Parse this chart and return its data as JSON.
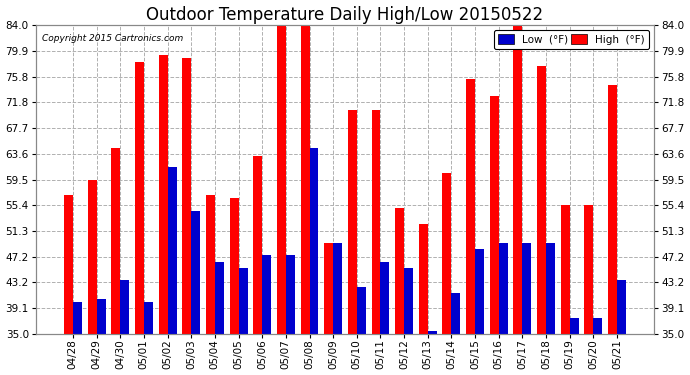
{
  "title": "Outdoor Temperature Daily High/Low 20150522",
  "copyright": "Copyright 2015 Cartronics.com",
  "dates": [
    "04/28",
    "04/29",
    "04/30",
    "05/01",
    "05/02",
    "05/03",
    "05/04",
    "05/05",
    "05/06",
    "05/07",
    "05/08",
    "05/09",
    "05/10",
    "05/11",
    "05/12",
    "05/13",
    "05/14",
    "05/15",
    "05/16",
    "05/17",
    "05/18",
    "05/19",
    "05/20",
    "05/21"
  ],
  "highs": [
    57.0,
    59.5,
    64.5,
    78.2,
    79.2,
    78.8,
    57.0,
    56.5,
    63.2,
    84.5,
    84.0,
    49.5,
    70.5,
    70.5,
    55.0,
    52.5,
    60.5,
    75.5,
    72.8,
    84.0,
    77.5,
    55.5,
    55.5,
    74.5
  ],
  "lows": [
    40.0,
    40.5,
    43.5,
    40.0,
    61.5,
    54.5,
    46.5,
    45.5,
    47.5,
    47.5,
    64.5,
    49.5,
    42.5,
    46.5,
    45.5,
    35.5,
    41.5,
    48.5,
    49.5,
    49.5,
    49.5,
    37.5,
    37.5,
    43.5
  ],
  "high_color": "#ff0000",
  "low_color": "#0000cd",
  "bg_color": "#ffffff",
  "grid_color": "#b0b0b0",
  "ylim_min": 35.0,
  "ylim_max": 84.0,
  "yticks": [
    35.0,
    39.1,
    43.2,
    47.2,
    51.3,
    55.4,
    59.5,
    63.6,
    67.7,
    71.8,
    75.8,
    79.9,
    84.0
  ],
  "bar_width": 0.38,
  "title_fontsize": 12,
  "tick_fontsize": 7.5,
  "legend_labels": [
    "Low  (°F)",
    "High  (°F)"
  ]
}
